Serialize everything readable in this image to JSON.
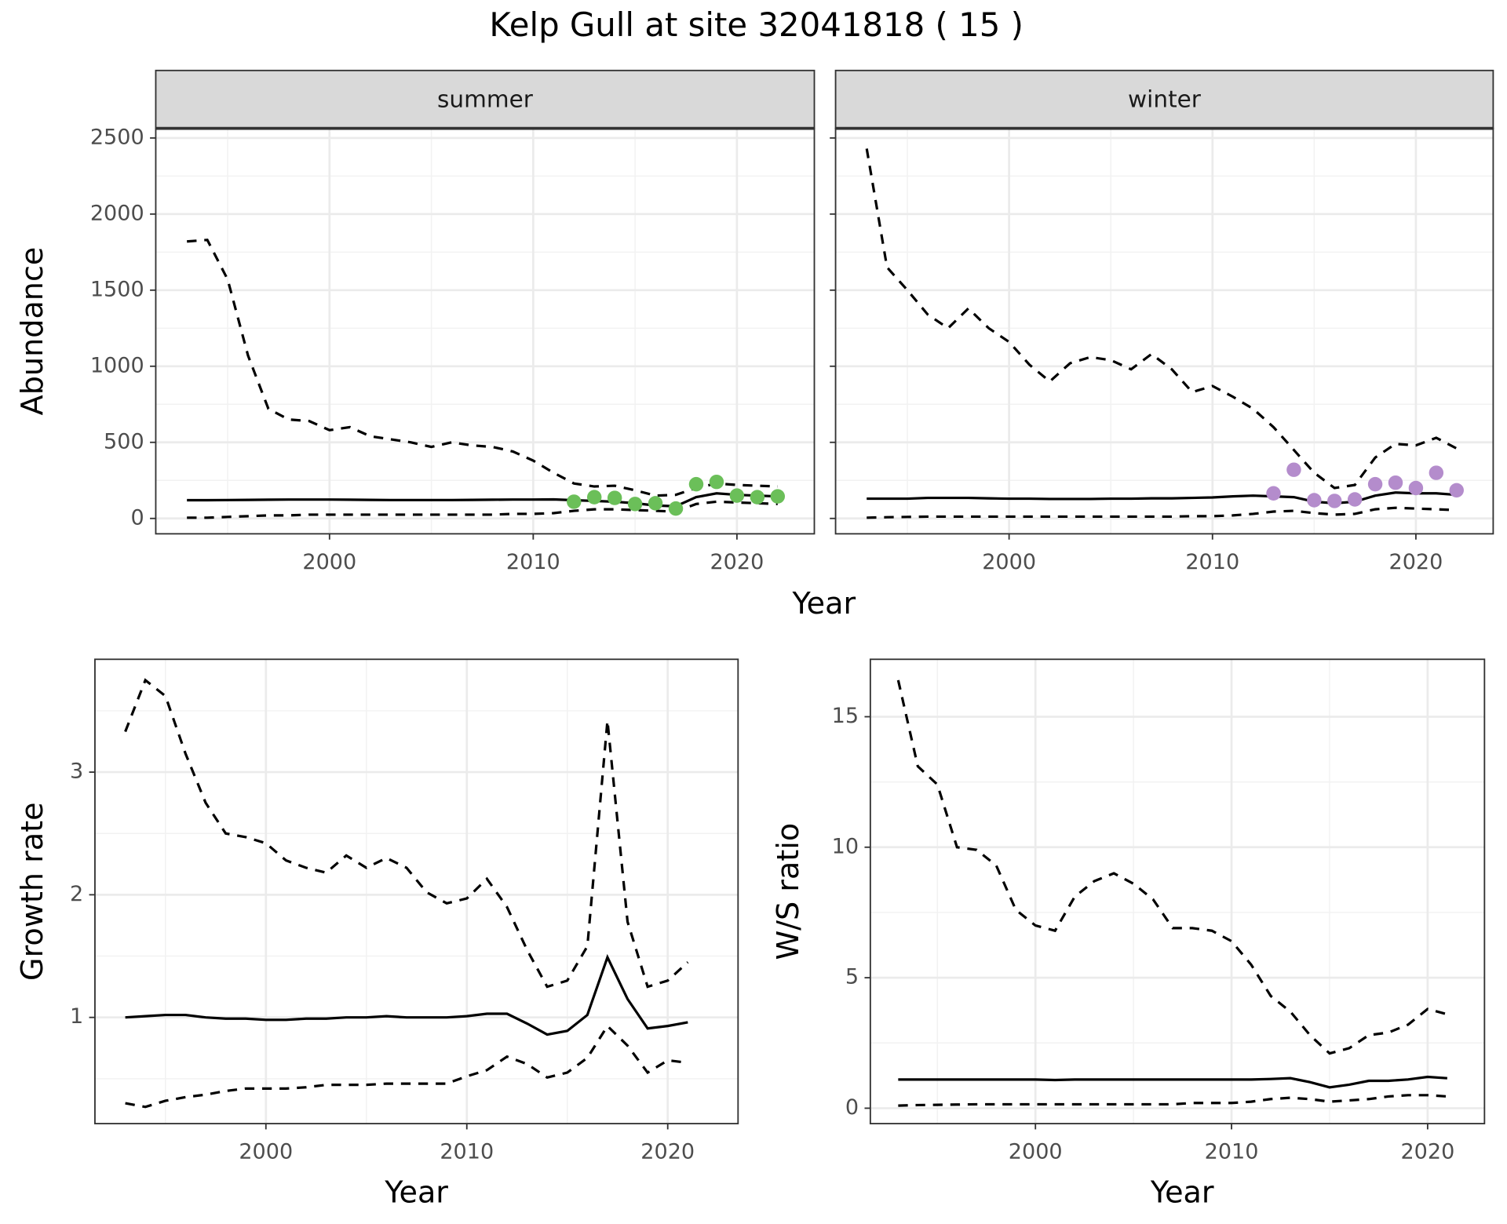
{
  "title": "Kelp Gull at site 32041818 ( 15 )",
  "chart_data": [
    {
      "type": "line",
      "panel": "summer",
      "xlabel": "Year",
      "ylabel": "Abundance",
      "xlim": [
        1991.47,
        2023.8
      ],
      "ylim": [
        -101,
        2563
      ],
      "xticks": [
        2000,
        2010,
        2020
      ],
      "yticks": [
        0,
        500,
        1000,
        1500,
        2000,
        2500
      ],
      "grid": true,
      "x": [
        1993,
        1994,
        1995,
        1996,
        1997,
        1998,
        1999,
        2000,
        2001,
        2002,
        2003,
        2004,
        2005,
        2006,
        2007,
        2008,
        2009,
        2010,
        2011,
        2012,
        2013,
        2014,
        2015,
        2016,
        2017,
        2018,
        2019,
        2020,
        2021,
        2022
      ],
      "series": [
        {
          "color": "#000000",
          "dash": false,
          "values": [
            120,
            120,
            121,
            122,
            123,
            124,
            124,
            124,
            123,
            122,
            121,
            121,
            121,
            121,
            122,
            123,
            124,
            124,
            125,
            120,
            115,
            110,
            100,
            85,
            80,
            140,
            165,
            155,
            150,
            145
          ]
        },
        {
          "color": "#000000",
          "dash": true,
          "values": [
            5,
            5,
            10,
            15,
            20,
            20,
            25,
            25,
            25,
            25,
            25,
            25,
            25,
            25,
            25,
            25,
            30,
            30,
            35,
            50,
            60,
            60,
            55,
            50,
            45,
            95,
            110,
            105,
            100,
            95
          ]
        },
        {
          "color": "#000000",
          "dash": true,
          "values": [
            1820,
            1830,
            1570,
            1070,
            720,
            650,
            640,
            580,
            600,
            540,
            520,
            500,
            470,
            500,
            480,
            470,
            440,
            380,
            300,
            230,
            210,
            215,
            185,
            150,
            155,
            200,
            230,
            220,
            215,
            210
          ]
        },
        {
          "color": "#6bbf59",
          "points": true,
          "x": [
            2012,
            2013,
            2014,
            2015,
            2016,
            2017,
            2018,
            2019,
            2020,
            2021,
            2022
          ],
          "values": [
            110,
            140,
            135,
            95,
            100,
            65,
            225,
            240,
            150,
            140,
            145
          ]
        }
      ]
    },
    {
      "type": "line",
      "panel": "winter",
      "show_y_labels": false,
      "xlim": [
        1991.47,
        2023.8
      ],
      "ylim": [
        -101,
        2563
      ],
      "xticks": [
        2000,
        2010,
        2020
      ],
      "yticks": [
        0,
        500,
        1000,
        1500,
        2000,
        2500
      ],
      "grid": true,
      "x": [
        1993,
        1994,
        1995,
        1996,
        1997,
        1998,
        1999,
        2000,
        2001,
        2002,
        2003,
        2004,
        2005,
        2006,
        2007,
        2008,
        2009,
        2010,
        2011,
        2012,
        2013,
        2014,
        2015,
        2016,
        2017,
        2018,
        2019,
        2020,
        2021,
        2022
      ],
      "series": [
        {
          "color": "#000000",
          "dash": false,
          "values": [
            130,
            130,
            130,
            135,
            135,
            135,
            132,
            130,
            130,
            128,
            128,
            128,
            130,
            130,
            132,
            132,
            135,
            138,
            145,
            150,
            145,
            140,
            110,
            100,
            110,
            150,
            170,
            165,
            165,
            155
          ]
        },
        {
          "color": "#000000",
          "dash": true,
          "values": [
            5,
            8,
            10,
            12,
            12,
            12,
            12,
            12,
            12,
            12,
            12,
            12,
            12,
            12,
            12,
            12,
            15,
            15,
            20,
            30,
            45,
            50,
            35,
            25,
            30,
            60,
            70,
            65,
            60,
            55
          ]
        },
        {
          "color": "#000000",
          "dash": true,
          "values": [
            2430,
            1650,
            1500,
            1340,
            1250,
            1380,
            1250,
            1160,
            1010,
            900,
            1020,
            1060,
            1040,
            980,
            1080,
            980,
            830,
            870,
            800,
            720,
            600,
            450,
            300,
            200,
            220,
            400,
            490,
            480,
            530,
            460
          ]
        },
        {
          "color": "#b48ccc",
          "points": true,
          "x": [
            2013,
            2014,
            2015,
            2016,
            2017,
            2018,
            2019,
            2020,
            2021,
            2022
          ],
          "values": [
            165,
            320,
            120,
            115,
            125,
            225,
            235,
            200,
            300,
            185
          ]
        }
      ]
    },
    {
      "type": "line",
      "xlabel": "Year",
      "ylabel": "Growth rate",
      "xlim": [
        1991.49,
        2023.5
      ],
      "ylim": [
        0.134,
        3.92
      ],
      "xticks": [
        2000,
        2010,
        2020
      ],
      "yticks": [
        1,
        2,
        3
      ],
      "grid": true,
      "x": [
        1993,
        1994,
        1995,
        1996,
        1997,
        1998,
        1999,
        2000,
        2001,
        2002,
        2003,
        2004,
        2005,
        2006,
        2007,
        2008,
        2009,
        2010,
        2011,
        2012,
        2013,
        2014,
        2015,
        2016,
        2017,
        2018,
        2019,
        2020,
        2021
      ],
      "series": [
        {
          "color": "#000000",
          "dash": false,
          "values": [
            1.0,
            1.01,
            1.02,
            1.02,
            1.0,
            0.99,
            0.99,
            0.98,
            0.98,
            0.99,
            0.99,
            1.0,
            1.0,
            1.01,
            1.0,
            1.0,
            1.0,
            1.01,
            1.03,
            1.03,
            0.95,
            0.86,
            0.89,
            1.02,
            1.49,
            1.15,
            0.91,
            0.93,
            0.96
          ]
        },
        {
          "color": "#000000",
          "dash": true,
          "values": [
            0.3,
            0.27,
            0.32,
            0.35,
            0.37,
            0.4,
            0.42,
            0.42,
            0.42,
            0.43,
            0.45,
            0.45,
            0.45,
            0.46,
            0.46,
            0.46,
            0.46,
            0.52,
            0.57,
            0.68,
            0.62,
            0.51,
            0.55,
            0.67,
            0.93,
            0.77,
            0.55,
            0.65,
            0.63
          ]
        },
        {
          "color": "#000000",
          "dash": true,
          "values": [
            3.33,
            3.75,
            3.62,
            3.15,
            2.75,
            2.5,
            2.47,
            2.42,
            2.28,
            2.22,
            2.18,
            2.32,
            2.22,
            2.3,
            2.22,
            2.02,
            1.93,
            1.97,
            2.13,
            1.9,
            1.55,
            1.25,
            1.3,
            1.58,
            3.42,
            1.78,
            1.25,
            1.3,
            1.45
          ]
        }
      ]
    },
    {
      "type": "line",
      "xlabel": "Year",
      "ylabel": "W/S ratio",
      "xlim": [
        1991.58,
        2022.9
      ],
      "ylim": [
        -0.59,
        17.2
      ],
      "xticks": [
        2000,
        2010,
        2020
      ],
      "yticks": [
        0,
        5,
        10,
        15
      ],
      "grid": true,
      "x": [
        1993,
        1994,
        1995,
        1996,
        1997,
        1998,
        1999,
        2000,
        2001,
        2002,
        2003,
        2004,
        2005,
        2006,
        2007,
        2008,
        2009,
        2010,
        2011,
        2012,
        2013,
        2014,
        2015,
        2016,
        2017,
        2018,
        2019,
        2020,
        2021
      ],
      "series": [
        {
          "color": "#000000",
          "dash": false,
          "values": [
            1.1,
            1.1,
            1.1,
            1.1,
            1.1,
            1.1,
            1.1,
            1.1,
            1.08,
            1.1,
            1.1,
            1.1,
            1.1,
            1.1,
            1.1,
            1.1,
            1.1,
            1.1,
            1.1,
            1.12,
            1.15,
            1.0,
            0.8,
            0.9,
            1.05,
            1.05,
            1.1,
            1.2,
            1.15
          ]
        },
        {
          "color": "#000000",
          "dash": true,
          "values": [
            0.1,
            0.12,
            0.13,
            0.14,
            0.15,
            0.15,
            0.15,
            0.15,
            0.15,
            0.15,
            0.15,
            0.15,
            0.15,
            0.15,
            0.15,
            0.2,
            0.2,
            0.2,
            0.25,
            0.35,
            0.4,
            0.35,
            0.25,
            0.3,
            0.35,
            0.45,
            0.5,
            0.5,
            0.45
          ]
        },
        {
          "color": "#000000",
          "dash": true,
          "values": [
            16.4,
            13.1,
            12.4,
            10.0,
            9.9,
            9.3,
            7.6,
            7.0,
            6.8,
            8.1,
            8.7,
            9.0,
            8.6,
            8.0,
            6.9,
            6.9,
            6.8,
            6.4,
            5.5,
            4.3,
            3.7,
            2.8,
            2.1,
            2.3,
            2.8,
            2.9,
            3.2,
            3.8,
            3.6
          ]
        }
      ]
    }
  ]
}
